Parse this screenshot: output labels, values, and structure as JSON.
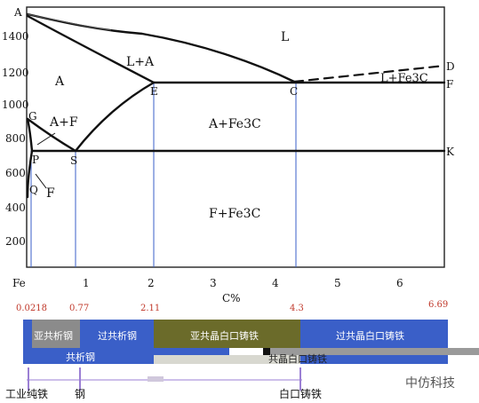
{
  "diagram": {
    "y_axis_ticks": [
      "1400",
      "1200",
      "1000",
      "800",
      "600",
      "400",
      "200"
    ],
    "x_axis_ticks": [
      "Fe",
      "1",
      "2",
      "3",
      "4",
      "5",
      "6"
    ],
    "x_axis_label": "C%",
    "points": {
      "A": "A",
      "G": "G",
      "P": "P",
      "Q": "Q",
      "S": "S",
      "E": "E",
      "C": "C",
      "D": "D",
      "F": "F",
      "K": "K"
    },
    "regions": {
      "liquid": "L",
      "liquid_austenite": "L+A",
      "austenite": "A",
      "austenite_ferrite": "A+F",
      "ferrite": "F",
      "liquid_cementite": "L+Fe3C",
      "austenite_cementite": "A+Fe3C",
      "ferrite_cementite": "F+Fe3C"
    }
  },
  "composition_marks": [
    "0.0218",
    "0.77",
    "2.11",
    "4.3",
    "6.69"
  ],
  "classification_bar": {
    "segments": [
      {
        "label": "亚共析钢",
        "color": "#8b8b8b"
      },
      {
        "label": "过共析钢",
        "color": "#3a5fc8"
      },
      {
        "label": "亚共晶白口铸铁",
        "color": "#6b6b2a"
      },
      {
        "label": "过共晶白口铸铁",
        "color": "#3a5fc8"
      }
    ],
    "lower_labels": {
      "eutectoid_steel": "共析钢",
      "eutectic_cast_iron": "共晶白口铸铁"
    }
  },
  "bottom_labels": {
    "industrial_iron": "工业纯铁",
    "steel": "钢",
    "white_cast_iron": "白口铸铁"
  },
  "watermark": "中仿科技"
}
